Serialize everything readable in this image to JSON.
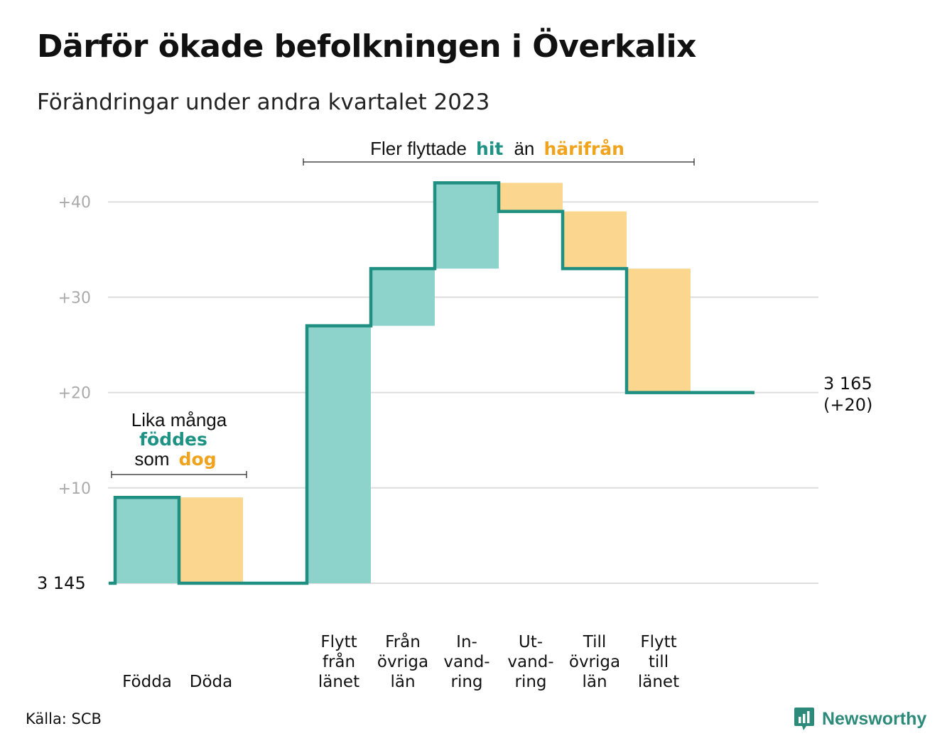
{
  "title": "Därför ökade befolkningen i Överkalix",
  "subtitle": "Förändringar under andra kvartalet 2023",
  "source": "Källa: SCB",
  "logo": {
    "text": "Newsworthy",
    "icon": "newsworthy-chart-bubble-icon"
  },
  "colors": {
    "inflow": "#8dd3cb",
    "outflow": "#fbd68f",
    "line": "#1e8f80",
    "accent_teal": "#1e9384",
    "accent_orange": "#f0a31c",
    "grid": "#dddddd"
  },
  "chart_data": {
    "type": "waterfall",
    "baseline_label": "3  145",
    "yticks": [
      "+40",
      "+30",
      "+20",
      "+10"
    ],
    "ytick_values": [
      40,
      30,
      20,
      10
    ],
    "ylim": [
      0,
      42
    ],
    "steps": [
      {
        "label_lines": [
          "Födda"
        ],
        "value": 9,
        "direction": "in"
      },
      {
        "label_lines": [
          "Döda"
        ],
        "value": -9,
        "direction": "out"
      },
      {
        "label_lines": [],
        "value": 0,
        "direction": "none"
      },
      {
        "label_lines": [
          "Flytt",
          "från",
          "länet"
        ],
        "value": 27,
        "direction": "in"
      },
      {
        "label_lines": [
          "Från",
          "övriga",
          "län"
        ],
        "value": 6,
        "direction": "in"
      },
      {
        "label_lines": [
          "In-",
          "vand-",
          "ring"
        ],
        "value": 9,
        "direction": "in"
      },
      {
        "label_lines": [
          "Ut-",
          "vand-",
          "ring"
        ],
        "value": -3,
        "direction": "out"
      },
      {
        "label_lines": [
          "Till",
          "övriga",
          "län"
        ],
        "value": -6,
        "direction": "out"
      },
      {
        "label_lines": [
          "Flytt",
          "till",
          "länet"
        ],
        "value": -13,
        "direction": "out"
      },
      {
        "label_lines": [],
        "value": 0,
        "direction": "none"
      }
    ],
    "end_label": {
      "line1": "3 165",
      "line2": "(+20)"
    },
    "annotations": {
      "births_deaths": {
        "line1": "Lika många",
        "line2": "föddes",
        "line3_pre": "som",
        "line3_post": "dog"
      },
      "migration": {
        "pre": "Fler flyttade",
        "hit": "hit",
        "mid": "än",
        "from": "härifrån"
      }
    }
  }
}
